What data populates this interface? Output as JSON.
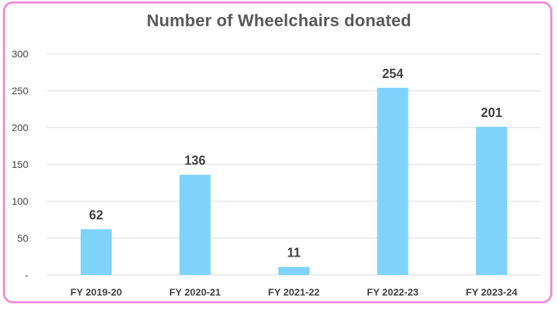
{
  "colors": {
    "bar": "#7fd3fb",
    "border": "#f48bd8",
    "grid": "#d9d9d9",
    "text": "#404040",
    "title": "#595959"
  },
  "chart_data": {
    "type": "bar",
    "title": "Number of Wheelchairs donated",
    "xlabel": "",
    "ylabel": "",
    "categories": [
      "FY 2019-20",
      "FY 2020-21",
      "FY 2021-22",
      "FY 2022-23",
      "FY 2023-24"
    ],
    "values": [
      62,
      136,
      11,
      254,
      201
    ],
    "data_labels": [
      "62",
      "136",
      "11",
      "254",
      "201"
    ],
    "ylim": [
      0,
      300
    ],
    "yticks": [
      0,
      50,
      100,
      150,
      200,
      250,
      300
    ],
    "ytick_labels": [
      "-",
      "50",
      "100",
      "150",
      "200",
      "250",
      "300"
    ],
    "grid": true,
    "legend": "none"
  }
}
